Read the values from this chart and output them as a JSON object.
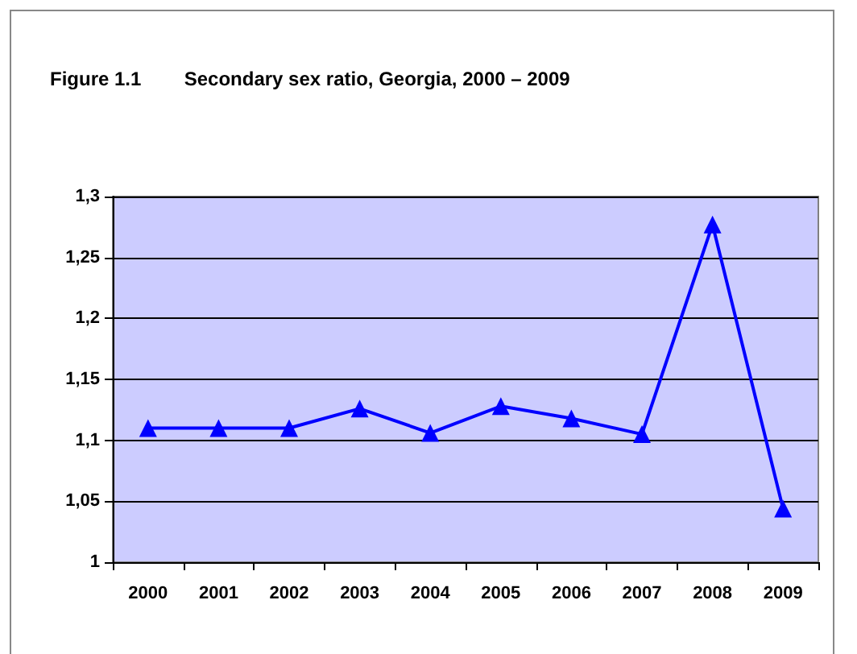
{
  "chart_data": {
    "type": "line",
    "title": "Figure 1.1        Secondary sex ratio, Georgia, 2000 – 2009",
    "categories": [
      "2000",
      "2001",
      "2002",
      "2003",
      "2004",
      "2005",
      "2006",
      "2007",
      "2008",
      "2009"
    ],
    "series": [
      {
        "color": "#0000ff",
        "values": [
          1.11,
          1.11,
          1.11,
          1.126,
          1.106,
          1.128,
          1.118,
          1.105,
          1.277,
          1.044
        ]
      }
    ],
    "ylim": [
      1,
      1.3
    ],
    "yticks": [
      {
        "value": 1,
        "label": "1"
      },
      {
        "value": 1.05,
        "label": "1,05"
      },
      {
        "value": 1.1,
        "label": "1,1"
      },
      {
        "value": 1.15,
        "label": "1,15"
      },
      {
        "value": 1.2,
        "label": "1,2"
      },
      {
        "value": 1.25,
        "label": "1,25"
      },
      {
        "value": 1.3,
        "label": "1,3"
      }
    ],
    "grid": "y",
    "marker": "triangle",
    "line_style": "solid"
  }
}
